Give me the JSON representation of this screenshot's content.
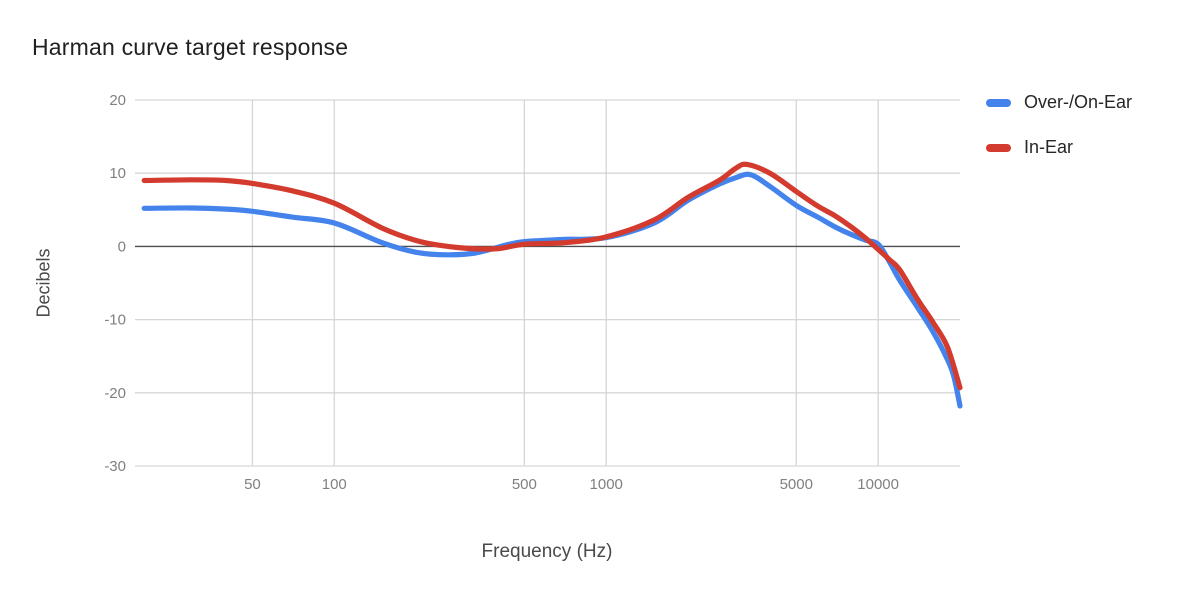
{
  "title": "Harman curve target response",
  "colors": {
    "background": "#ffffff",
    "title_text": "#212121",
    "axis_title_text": "#4a4a4a",
    "tick_label_text": "#808080",
    "gridline": "#d6d6d6",
    "zero_line": "#4d4d4d",
    "series_blue": "#4583ec",
    "series_red": "#d23b2d"
  },
  "chart_data": {
    "type": "line",
    "title": "Harman curve target response",
    "xlabel": "Frequency (Hz)",
    "ylabel": "Decibels",
    "x_scale": "log",
    "xlim": [
      18.5,
      20000
    ],
    "ylim": [
      -30,
      20
    ],
    "x_ticks": [
      "50",
      "100",
      "500",
      "1000",
      "5000",
      "10000"
    ],
    "x_tick_values": [
      50,
      100,
      500,
      1000,
      5000,
      10000
    ],
    "y_ticks": [
      "20",
      "10",
      "0",
      "-10",
      "-20",
      "-30"
    ],
    "y_tick_values": [
      20,
      10,
      0,
      -10,
      -20,
      -30
    ],
    "grid": true,
    "legend_position": "top-right",
    "series": [
      {
        "name": "Over-/On-Ear",
        "color": "#4583ec",
        "points": [
          [
            20,
            5.2
          ],
          [
            30,
            5.25
          ],
          [
            40,
            5.1
          ],
          [
            50,
            4.8
          ],
          [
            70,
            4.0
          ],
          [
            100,
            3.2
          ],
          [
            150,
            0.5
          ],
          [
            200,
            -0.8
          ],
          [
            260,
            -1.15
          ],
          [
            330,
            -0.9
          ],
          [
            430,
            0.2
          ],
          [
            500,
            0.65
          ],
          [
            700,
            0.95
          ],
          [
            1000,
            1.2
          ],
          [
            1500,
            3.2
          ],
          [
            2000,
            6.3
          ],
          [
            2600,
            8.5
          ],
          [
            3000,
            9.4
          ],
          [
            3400,
            9.8
          ],
          [
            4000,
            8.2
          ],
          [
            5000,
            5.6
          ],
          [
            6000,
            4.0
          ],
          [
            7000,
            2.6
          ],
          [
            8000,
            1.6
          ],
          [
            9000,
            0.85
          ],
          [
            10000,
            0.3
          ],
          [
            11000,
            -2.1
          ],
          [
            12000,
            -4.6
          ],
          [
            14000,
            -8.4
          ],
          [
            16000,
            -11.8
          ],
          [
            18000,
            -15.5
          ],
          [
            19000,
            -17.8
          ],
          [
            20000,
            -21.8
          ]
        ]
      },
      {
        "name": "In-Ear",
        "color": "#d23b2d",
        "points": [
          [
            20,
            9.0
          ],
          [
            30,
            9.1
          ],
          [
            40,
            9.0
          ],
          [
            50,
            8.6
          ],
          [
            70,
            7.6
          ],
          [
            100,
            5.9
          ],
          [
            150,
            2.5
          ],
          [
            200,
            0.8
          ],
          [
            250,
            0.1
          ],
          [
            320,
            -0.3
          ],
          [
            400,
            -0.3
          ],
          [
            500,
            0.3
          ],
          [
            700,
            0.5
          ],
          [
            1000,
            1.3
          ],
          [
            1500,
            3.6
          ],
          [
            2000,
            6.7
          ],
          [
            2600,
            9.0
          ],
          [
            3000,
            10.7
          ],
          [
            3300,
            11.2
          ],
          [
            4000,
            10.0
          ],
          [
            5000,
            7.5
          ],
          [
            6000,
            5.5
          ],
          [
            7000,
            4.1
          ],
          [
            8000,
            2.6
          ],
          [
            9000,
            1.1
          ],
          [
            10000,
            -0.4
          ],
          [
            11000,
            -1.8
          ],
          [
            12000,
            -3.2
          ],
          [
            14000,
            -7.3
          ],
          [
            16000,
            -10.5
          ],
          [
            18000,
            -13.8
          ],
          [
            20000,
            -19.3
          ]
        ]
      }
    ]
  }
}
